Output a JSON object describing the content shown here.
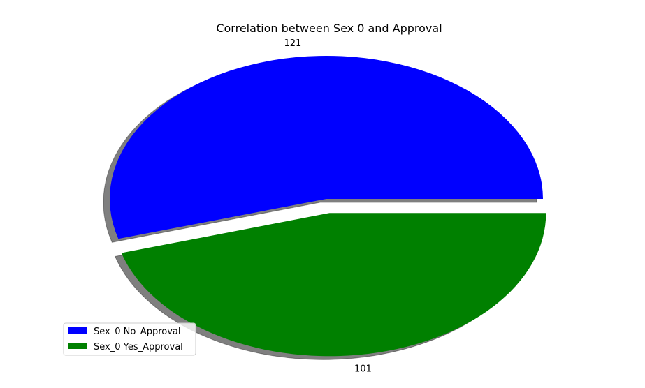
{
  "chart_data": {
    "type": "pie",
    "title": "Correlation between Sex 0 and Approval",
    "slices": [
      {
        "label": "Sex_0 No_Approval",
        "value": 121,
        "color": "#0000ff",
        "explode": 0
      },
      {
        "label": "Sex_0 Yes_Approval",
        "value": 101,
        "color": "#008000",
        "explode": 0.1
      }
    ],
    "shadow": true,
    "start_angle": 0,
    "legend_placement": "lower-left"
  }
}
